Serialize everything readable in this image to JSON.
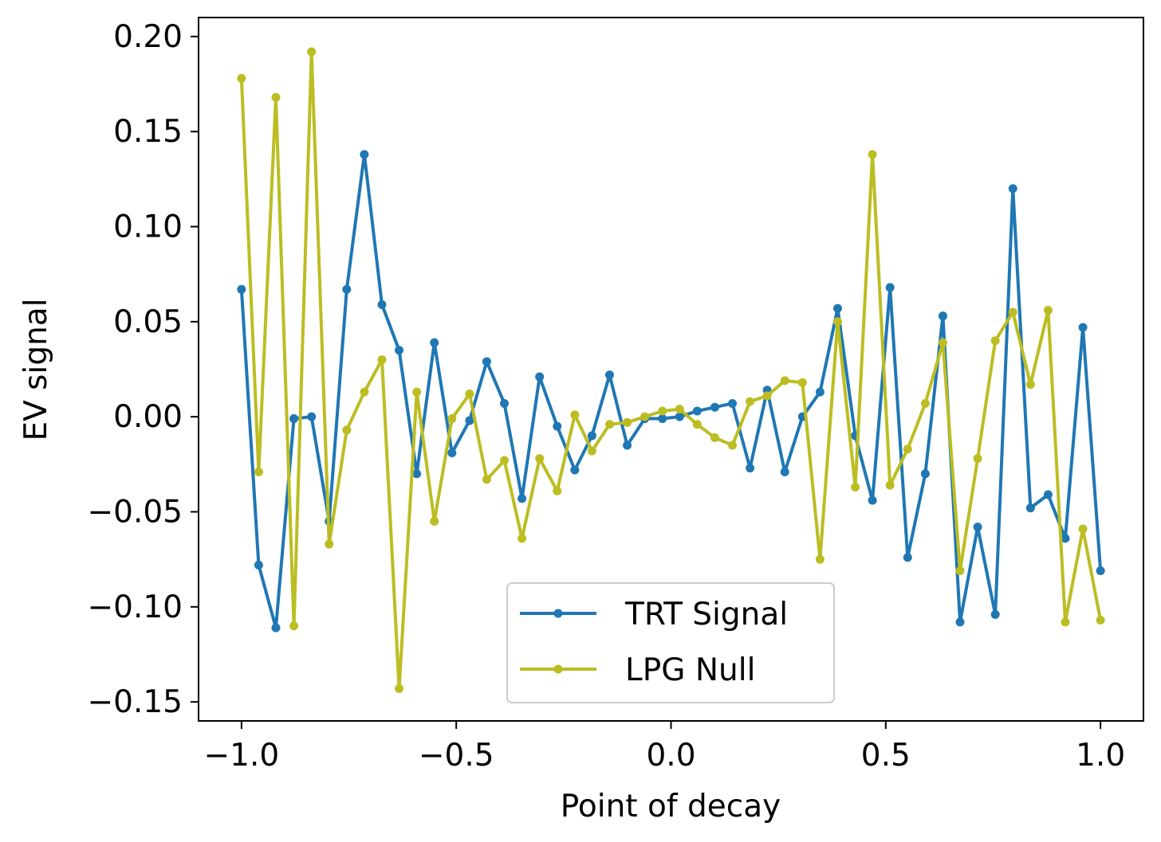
{
  "chart_data": {
    "type": "line",
    "title": "",
    "xlabel": "Point of decay",
    "ylabel": "EV signal",
    "xlim": [
      -1.1,
      1.1
    ],
    "ylim": [
      -0.16,
      0.21
    ],
    "xticks": [
      -1.0,
      -0.5,
      0.0,
      0.5,
      1.0
    ],
    "xtick_labels": [
      "−1.0",
      "−0.5",
      "0.0",
      "0.5",
      "1.0"
    ],
    "yticks": [
      -0.15,
      -0.1,
      -0.05,
      0.0,
      0.05,
      0.1,
      0.15,
      0.2
    ],
    "ytick_labels": [
      "−0.15",
      "−0.10",
      "−0.05",
      "0.00",
      "0.05",
      "0.10",
      "0.15",
      "0.20"
    ],
    "grid": false,
    "legend_position": "lower-center",
    "x": [
      -1.0,
      -0.96,
      -0.92,
      -0.878,
      -0.837,
      -0.796,
      -0.755,
      -0.714,
      -0.673,
      -0.633,
      -0.592,
      -0.551,
      -0.51,
      -0.469,
      -0.429,
      -0.388,
      -0.347,
      -0.306,
      -0.265,
      -0.224,
      -0.184,
      -0.143,
      -0.102,
      -0.061,
      -0.02,
      0.02,
      0.061,
      0.102,
      0.143,
      0.184,
      0.224,
      0.265,
      0.306,
      0.347,
      0.388,
      0.429,
      0.469,
      0.51,
      0.551,
      0.592,
      0.633,
      0.673,
      0.714,
      0.755,
      0.796,
      0.837,
      0.878,
      0.918,
      0.959,
      1.0
    ],
    "series": [
      {
        "name": "TRT Signal",
        "color": "#1f77b4",
        "values": [
          0.067,
          -0.078,
          -0.111,
          -0.001,
          0.0,
          -0.055,
          0.067,
          0.138,
          0.059,
          0.035,
          -0.03,
          0.039,
          -0.019,
          -0.002,
          0.029,
          0.007,
          -0.043,
          0.021,
          -0.005,
          -0.028,
          -0.01,
          0.022,
          -0.015,
          -0.001,
          -0.001,
          0.0,
          0.003,
          0.005,
          0.007,
          -0.027,
          0.014,
          -0.029,
          0.0,
          0.013,
          0.057,
          -0.01,
          -0.044,
          0.068,
          -0.074,
          -0.03,
          0.053,
          -0.108,
          -0.058,
          -0.104,
          0.12,
          -0.048,
          -0.041,
          -0.064,
          0.047,
          -0.081
        ]
      },
      {
        "name": "LPG Null",
        "color": "#bcbd22",
        "values": [
          0.178,
          -0.029,
          0.168,
          -0.11,
          0.192,
          -0.067,
          -0.007,
          0.013,
          0.03,
          -0.143,
          0.013,
          -0.055,
          -0.001,
          0.012,
          -0.033,
          -0.023,
          -0.064,
          -0.022,
          -0.039,
          0.001,
          -0.018,
          -0.004,
          -0.003,
          0.0,
          0.003,
          0.004,
          -0.004,
          -0.011,
          -0.015,
          0.008,
          0.011,
          0.019,
          0.018,
          -0.075,
          0.05,
          -0.037,
          0.138,
          -0.036,
          -0.017,
          0.007,
          0.039,
          -0.081,
          -0.022,
          0.04,
          0.055,
          0.017,
          0.056,
          -0.108,
          -0.059,
          -0.107
        ]
      }
    ]
  }
}
